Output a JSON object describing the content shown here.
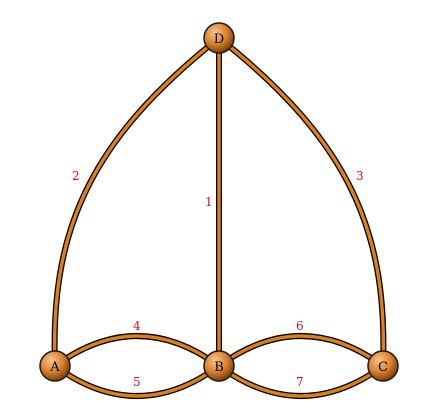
{
  "nodes": [
    {
      "id": "A",
      "label": "A"
    },
    {
      "id": "B",
      "label": "B"
    },
    {
      "id": "C",
      "label": "C"
    },
    {
      "id": "D",
      "label": "D"
    }
  ],
  "edges": [
    {
      "id": "e1",
      "from": "B",
      "to": "D",
      "label": "1"
    },
    {
      "id": "e2",
      "from": "A",
      "to": "D",
      "label": "2"
    },
    {
      "id": "e3",
      "from": "C",
      "to": "D",
      "label": "3"
    },
    {
      "id": "e4",
      "from": "A",
      "to": "B",
      "label": "4"
    },
    {
      "id": "e5",
      "from": "A",
      "to": "B",
      "label": "5"
    },
    {
      "id": "e6",
      "from": "B",
      "to": "C",
      "label": "6"
    },
    {
      "id": "e7",
      "from": "B",
      "to": "C",
      "label": "7"
    }
  ],
  "colors": {
    "edge_fill": "#E07F12",
    "edge_outline": "#000000",
    "node_highlight": "#F7C58E",
    "node_mid": "#D9822B",
    "node_shadow": "#7A3A08",
    "edge_label": "#E0101C",
    "node_label": "#000000"
  }
}
